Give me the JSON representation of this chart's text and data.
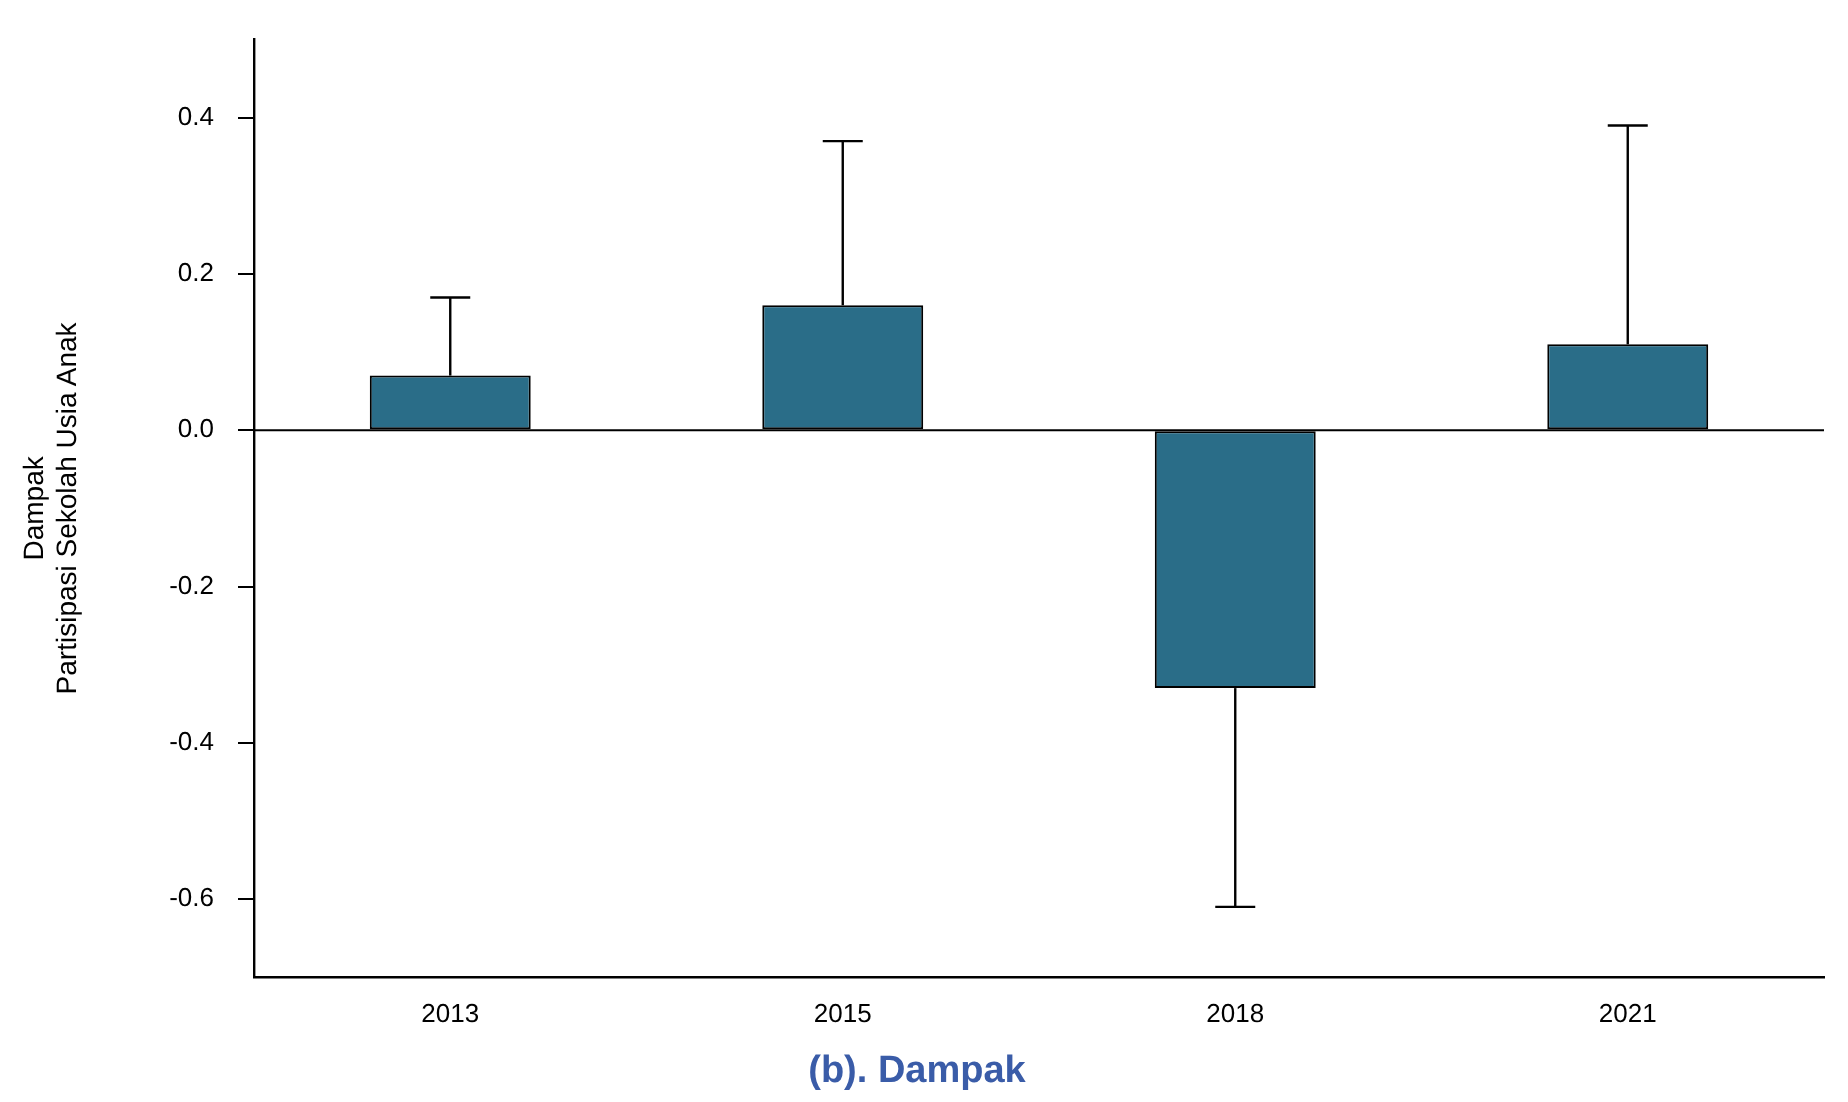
{
  "chart_data": {
    "type": "bar",
    "title": "(b). Dampak",
    "ylabel": "Dampak\nPartisipasi Sekolah Usia Anak",
    "categories": [
      "2013",
      "2015",
      "2018",
      "2021"
    ],
    "values": [
      0.07,
      0.16,
      -0.33,
      0.11
    ],
    "errors": [
      [
        0.07,
        0.17
      ],
      [
        0.16,
        0.37
      ],
      [
        -0.61,
        -0.33
      ],
      [
        0.11,
        0.39
      ]
    ],
    "color": "#2a6d88",
    "ylim": [
      -0.7,
      0.5
    ],
    "yticks": [
      {
        "value": -0.6,
        "label": "-0.6"
      },
      {
        "value": -0.4,
        "label": "-0.4"
      },
      {
        "value": -0.2,
        "label": "-0.2"
      },
      {
        "value": 0,
        "label": "0.0"
      },
      0.2,
      0.4
    ],
    "ref_lines": [
      {
        "axis": "y",
        "value": 0,
        "color": "#000000"
      }
    ],
    "grid": false,
    "legend": false
  }
}
